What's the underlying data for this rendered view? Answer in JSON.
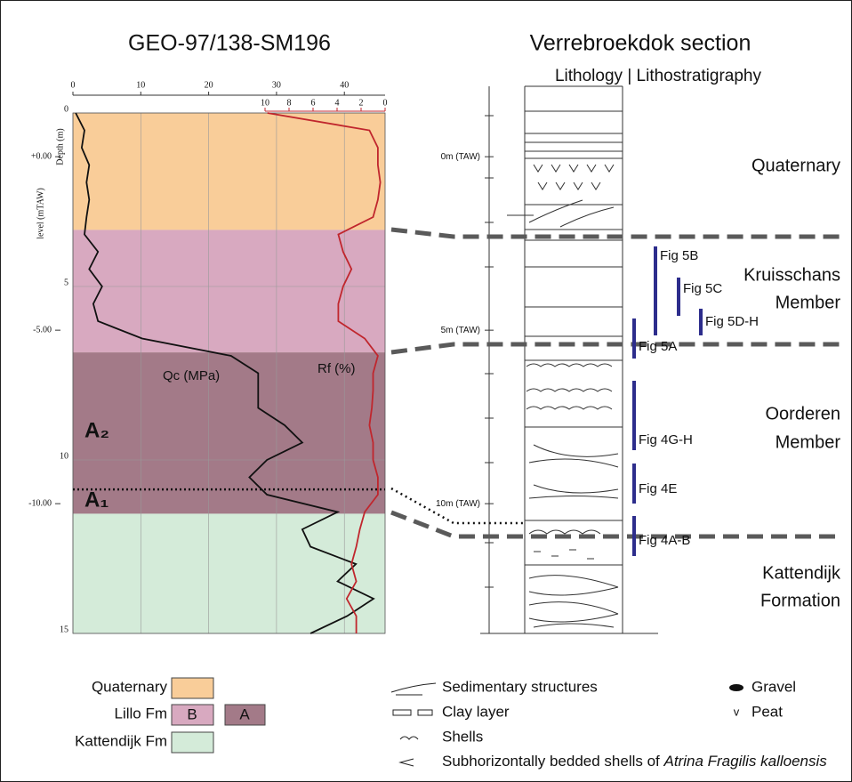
{
  "chart_data": {
    "type": "line",
    "title": "GEO-97/138-SM196",
    "xlabel": "Depth (m)",
    "level_label": "level (mTAW)",
    "x": [
      0,
      0.5,
      1,
      1.5,
      2,
      2.5,
      3,
      3.5,
      4,
      4.5,
      5,
      5.5,
      6,
      6.5,
      7,
      7.5,
      8,
      8.5,
      9,
      9.5,
      10,
      10.5,
      11,
      11.5,
      12,
      12.5,
      13,
      13.5,
      14,
      14.5,
      15
    ],
    "xlim": [
      0,
      15
    ],
    "xticks": [
      0,
      5,
      10,
      15
    ],
    "level_lim": [
      1.26,
      -13.74
    ],
    "level_ticks": [
      {
        "value": 0,
        "label": "+0.00"
      },
      {
        "value": -5,
        "label": "-5.00"
      },
      {
        "value": -10,
        "label": "-10.00"
      }
    ],
    "ylim": [
      0,
      46
    ],
    "yticks": [
      0,
      10,
      20,
      30,
      40
    ],
    "y2lim": [
      26,
      0
    ],
    "y2ticks": [
      10,
      8,
      6,
      4,
      2,
      0
    ],
    "series": [
      {
        "name": "Qc (MPa)",
        "color": "#111111",
        "values": [
          0.4,
          1.7,
          1.3,
          2.4,
          2,
          2.4,
          2,
          1.7,
          3.7,
          2.4,
          4.3,
          3,
          3.7,
          10.2,
          23.3,
          27.3,
          27.3,
          27.3,
          31.2,
          33.8,
          28.6,
          26,
          28.6,
          39,
          33.8,
          35,
          41.7,
          39,
          44.3,
          40.4,
          35
        ]
      },
      {
        "name": "Rf (%)",
        "color": "#c0262d",
        "axis": "y2",
        "values": [
          9.8,
          1.3,
          0.6,
          0.6,
          0.4,
          0.6,
          1,
          3.9,
          3.5,
          2.8,
          3.5,
          3.9,
          3.9,
          1.7,
          0.6,
          1,
          1,
          1.1,
          1.3,
          1,
          1,
          0.6,
          0.6,
          1.7,
          2.1,
          2.4,
          2.8,
          2.4,
          3.2,
          2.4,
          2.4
        ]
      }
    ],
    "zones": [
      {
        "from": 0,
        "to": 3.37,
        "color": "#f9cd99"
      },
      {
        "from": 3.37,
        "to": 6.9,
        "color": "#d8a9c0"
      },
      {
        "from": 6.9,
        "to": 11.55,
        "color": "#a37a88"
      },
      {
        "from": 11.55,
        "to": 15,
        "color": "#d4ebd9"
      }
    ],
    "subdivision_depth": 10.85,
    "annotations": [
      "A₂",
      "A₁"
    ]
  },
  "section": {
    "title": "Verrebroekdok section",
    "subtitle": "Lithology | Lithostratigraphy",
    "levels": [
      {
        "value": 0,
        "label": "0m (TAW)"
      },
      {
        "value": -5,
        "label": "5m (TAW)"
      },
      {
        "value": -10,
        "label": "10m (TAW)"
      }
    ],
    "units": [
      "Quaternary",
      "Kruisschans",
      "Member",
      "Oorderen",
      "Member",
      "Kattendijk",
      "Formation"
    ],
    "figs": [
      "Fig 5B",
      "Fig 5C",
      "Fig 5D-H",
      "Fig 5A",
      "Fig 4G-H",
      "Fig 4E",
      "Fig 4A-B"
    ]
  },
  "legend": {
    "zones": [
      "Quaternary",
      "Lillo Fm",
      "Kattendijk Fm"
    ],
    "boxes": [
      "B",
      "A"
    ],
    "symbols": [
      "Sedimentary structures",
      "Clay layer",
      "Shells",
      "Subhorizontally bedded shells of ",
      "Atrina Fragilis kalloensis",
      "Gravel",
      "Peat"
    ]
  }
}
